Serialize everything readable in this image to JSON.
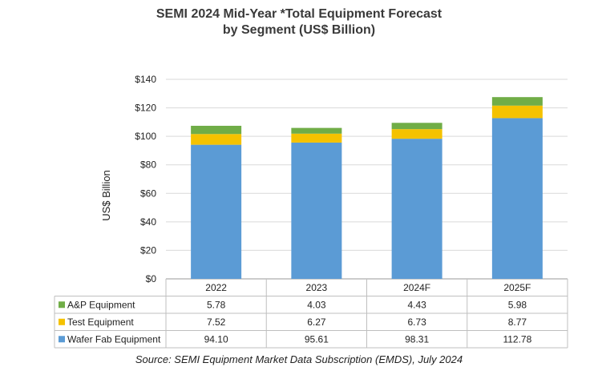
{
  "chart_data": {
    "type": "bar",
    "stacked": true,
    "title_lines": [
      "SEMI 2024 Mid-Year *Total Equipment Forecast",
      "by Segment (US$ Billion)"
    ],
    "ylabel": "US$ Billion",
    "ylim": [
      0,
      140
    ],
    "y_ticks": [
      "$0",
      "$20",
      "$40",
      "$60",
      "$80",
      "$100",
      "$120",
      "$140"
    ],
    "y_tick_values": [
      0,
      20,
      40,
      60,
      80,
      100,
      120,
      140
    ],
    "categories": [
      "2022",
      "2023",
      "2024F",
      "2025F"
    ],
    "series": [
      {
        "name": "Wafer Fab Equipment",
        "color": "#5b9bd5",
        "values": [
          94.1,
          95.61,
          98.31,
          112.78
        ],
        "labels": [
          "94.10",
          "95.61",
          "98.31",
          "112.78"
        ]
      },
      {
        "name": "Test Equipment",
        "color": "#f5c200",
        "values": [
          7.52,
          6.27,
          6.73,
          8.77
        ],
        "labels": [
          "7.52",
          "6.27",
          "6.73",
          "8.77"
        ]
      },
      {
        "name": "A&P Equipment",
        "color": "#70ad47",
        "values": [
          5.78,
          4.03,
          4.43,
          5.98
        ],
        "labels": [
          "5.78",
          "4.03",
          "4.43",
          "5.98"
        ]
      }
    ],
    "table_row_order": [
      "A&P Equipment",
      "Test Equipment",
      "Wafer Fab Equipment"
    ],
    "grid": true,
    "source": "Source: SEMI Equipment Market Data Subscription (EMDS), July 2024"
  }
}
